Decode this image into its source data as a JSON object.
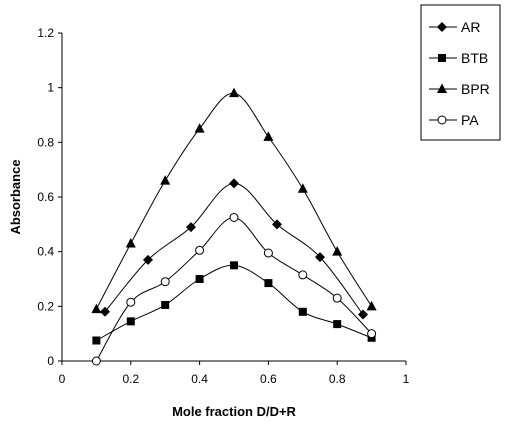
{
  "chart_data": {
    "type": "line",
    "title": "",
    "xlabel": "Mole fraction D/D+R",
    "ylabel": "Absorbance",
    "xlim": [
      0,
      1
    ],
    "ylim": [
      0,
      1.2
    ],
    "x_ticks": [
      "0",
      "0.2",
      "0.4",
      "0.6",
      "0.8",
      "1"
    ],
    "y_ticks": [
      "0",
      "0.2",
      "0.4",
      "0.6",
      "0.8",
      "1",
      "1.2"
    ],
    "grid": false,
    "legend_position": "top-right",
    "series": [
      {
        "name": "AR",
        "marker": "diamond",
        "points": [
          [
            0.125,
            0.18
          ],
          [
            0.25,
            0.37
          ],
          [
            0.375,
            0.49
          ],
          [
            0.5,
            0.65
          ],
          [
            0.625,
            0.5
          ],
          [
            0.75,
            0.38
          ],
          [
            0.875,
            0.17
          ]
        ]
      },
      {
        "name": "BTB",
        "marker": "square",
        "points": [
          [
            0.1,
            0.075
          ],
          [
            0.2,
            0.145
          ],
          [
            0.3,
            0.205
          ],
          [
            0.4,
            0.3
          ],
          [
            0.5,
            0.35
          ],
          [
            0.6,
            0.285
          ],
          [
            0.7,
            0.18
          ],
          [
            0.8,
            0.135
          ],
          [
            0.9,
            0.085
          ]
        ]
      },
      {
        "name": "BPR",
        "marker": "triangle",
        "points": [
          [
            0.1,
            0.19
          ],
          [
            0.2,
            0.43
          ],
          [
            0.3,
            0.66
          ],
          [
            0.4,
            0.85
          ],
          [
            0.5,
            0.98
          ],
          [
            0.6,
            0.82
          ],
          [
            0.7,
            0.63
          ],
          [
            0.8,
            0.4
          ],
          [
            0.9,
            0.2
          ]
        ]
      },
      {
        "name": "PA",
        "marker": "circle-open",
        "points": [
          [
            0.1,
            0.0
          ],
          [
            0.2,
            0.215
          ],
          [
            0.3,
            0.29
          ],
          [
            0.4,
            0.405
          ],
          [
            0.5,
            0.525
          ],
          [
            0.6,
            0.395
          ],
          [
            0.7,
            0.315
          ],
          [
            0.8,
            0.23
          ],
          [
            0.9,
            0.1
          ]
        ]
      }
    ]
  }
}
